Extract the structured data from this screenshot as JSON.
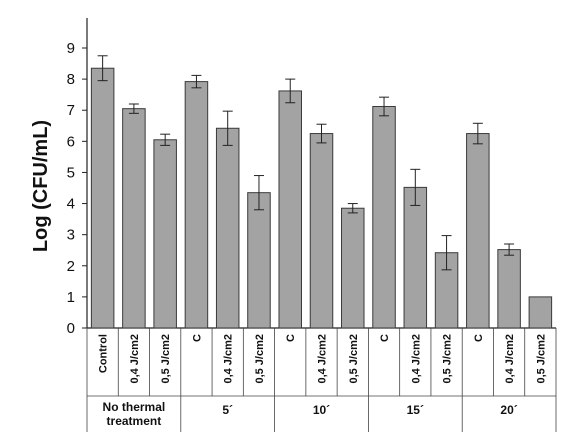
{
  "chart_data": {
    "type": "bar",
    "ylabel": "Log (CFU/mL)",
    "xlabel": "",
    "ylim": [
      0,
      9
    ],
    "yticks": [
      0,
      1,
      2,
      3,
      4,
      5,
      6,
      7,
      8,
      9
    ],
    "grid": false,
    "bar_color": "#a3a3a3",
    "categories": [
      "Control",
      "0,4 J/cm2",
      "0,5 J/cm2",
      "C",
      "0,4 J/cm2",
      "0,5 J/cm2",
      "C",
      "0,4 J/cm2",
      "0,5 J/cm2",
      "C",
      "0,4 J/cm2",
      "0,5 J/cm2",
      "C",
      "0,4 J/cm2",
      "0,5 J/cm2"
    ],
    "values": [
      8.35,
      7.05,
      6.05,
      7.92,
      6.42,
      4.35,
      7.62,
      6.25,
      3.85,
      7.12,
      4.52,
      2.42,
      6.25,
      2.52,
      1.0
    ],
    "errors": [
      0.4,
      0.15,
      0.18,
      0.2,
      0.55,
      0.55,
      0.38,
      0.3,
      0.15,
      0.3,
      0.58,
      0.55,
      0.33,
      0.18,
      0.0
    ],
    "groups": [
      {
        "lines": [
          "No thermal",
          "treatment"
        ],
        "start": 0,
        "count": 3
      },
      {
        "lines": [
          "5´"
        ],
        "start": 3,
        "count": 3
      },
      {
        "lines": [
          "10´"
        ],
        "start": 6,
        "count": 3
      },
      {
        "lines": [
          "15´"
        ],
        "start": 9,
        "count": 3
      },
      {
        "lines": [
          "20´"
        ],
        "start": 12,
        "count": 3
      }
    ]
  }
}
